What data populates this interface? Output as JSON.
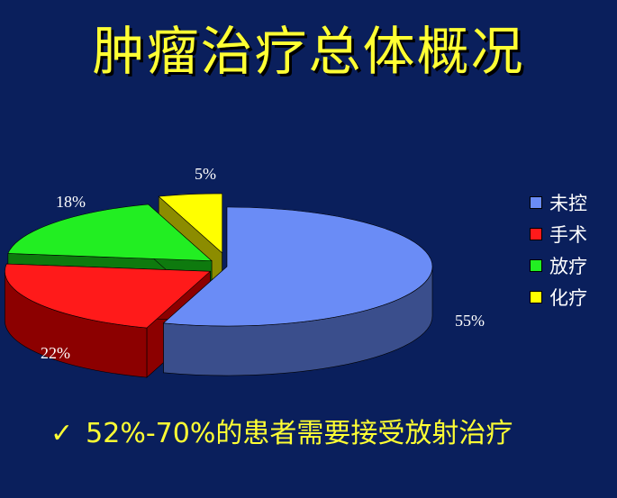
{
  "title": "肿瘤治疗总体概况",
  "chart_data": {
    "type": "pie",
    "style": "3d-exploded",
    "categories": [
      "未控",
      "手术",
      "放疗",
      "化疗"
    ],
    "values": [
      55,
      22,
      18,
      5
    ],
    "value_labels": [
      "55%",
      "22%",
      "18%",
      "5%"
    ],
    "colors": [
      "#6a8cf6",
      "#ff1a1a",
      "#22ee22",
      "#ffff00"
    ],
    "side_colors": [
      "#3a4e8c",
      "#8c0000",
      "#0e7a0e",
      "#8c8c00"
    ],
    "legend_position": "right"
  },
  "bullet": {
    "icon": "checkmark-icon",
    "mark": "✓",
    "text": "52%-70%的患者需要接受放射治疗"
  }
}
